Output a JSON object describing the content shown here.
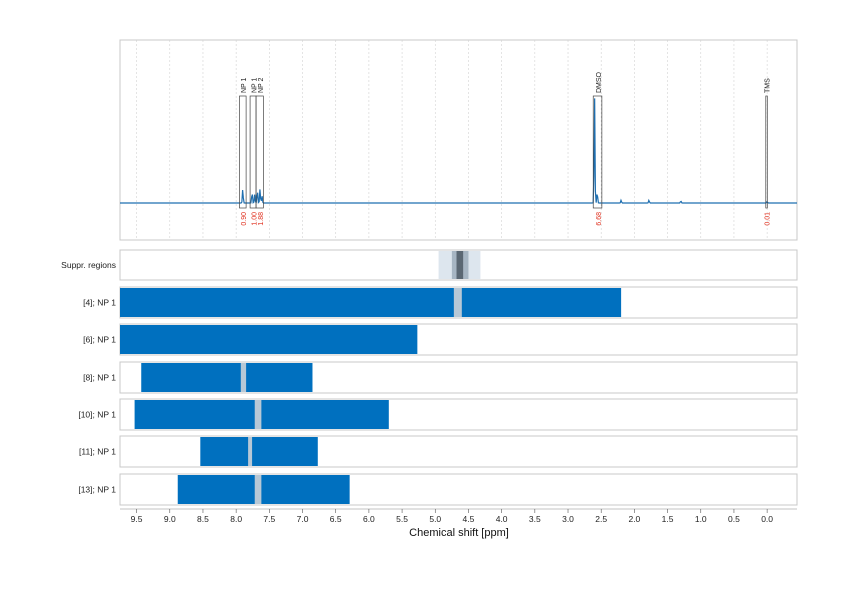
{
  "chart_data": {
    "type": "nmr_spectrum_with_regions",
    "xlabel": "Chemical shift [ppm]",
    "x_axis_reversed": true,
    "xlim": [
      9.75,
      -0.45
    ],
    "x_ticks": [
      "9.5",
      "9.0",
      "8.5",
      "8.0",
      "7.5",
      "7.0",
      "6.5",
      "6.0",
      "5.5",
      "5.0",
      "4.5",
      "4.0",
      "3.5",
      "3.0",
      "2.5",
      "2.0",
      "1.5",
      "1.0",
      "0.5",
      "0.0"
    ],
    "spectrum": {
      "baseline": 0,
      "ylim": [
        -0.22,
        1.0
      ],
      "color": "#1f6fb0",
      "peaks": [
        {
          "x": 7.9,
          "h": 0.1
        },
        {
          "x": 7.76,
          "h": 0.08
        },
        {
          "x": 7.72,
          "h": 0.06
        },
        {
          "x": 7.68,
          "h": 0.09
        },
        {
          "x": 7.64,
          "h": 0.1
        },
        {
          "x": 7.61,
          "h": 0.05
        },
        {
          "x": 2.6,
          "h": 0.75
        },
        {
          "x": 2.56,
          "h": 0.08
        },
        {
          "x": 2.2,
          "h": 0.02
        },
        {
          "x": 1.78,
          "h": 0.02
        },
        {
          "x": 1.3,
          "h": 0.015
        },
        {
          "x": 0.0,
          "h": 0.01
        }
      ],
      "annotations": [
        {
          "label": "NP 1",
          "x": 7.9,
          "x_from": 7.95,
          "x_to": 7.85,
          "integral": "0.90"
        },
        {
          "label": "NP 1",
          "x": 7.74,
          "x_from": 7.79,
          "x_to": 7.7,
          "integral": "1.00"
        },
        {
          "label": "NP 2",
          "x": 7.64,
          "x_from": 7.7,
          "x_to": 7.59,
          "integral": "1.88"
        },
        {
          "label": "DMSO",
          "x": 2.55,
          "x_from": 2.62,
          "x_to": 2.49,
          "integral": "6.68"
        },
        {
          "label": "TMS",
          "x": 0.01,
          "x_from": 0.02,
          "x_to": 0.0,
          "integral": "0.01"
        }
      ],
      "integral_color": "#e0301e"
    },
    "suppression": {
      "label": "Suppr. regions",
      "outer": [
        4.95,
        4.32
      ],
      "middle": [
        4.75,
        4.5
      ],
      "inner": [
        4.68,
        4.58
      ]
    },
    "bar_rows": [
      {
        "label": "[4]; NP 1",
        "start": 9.75,
        "end": 2.2,
        "gap": [
          4.72,
          4.6
        ]
      },
      {
        "label": "[6]; NP 1",
        "start": 9.75,
        "end": 5.27,
        "gap": null
      },
      {
        "label": "[8]; NP 1",
        "start": 9.43,
        "end": 6.85,
        "gap": [
          7.93,
          7.85
        ]
      },
      {
        "label": "[10]; NP 1",
        "start": 9.53,
        "end": 5.7,
        "gap": [
          7.72,
          7.62
        ]
      },
      {
        "label": "[11]; NP 1",
        "start": 8.54,
        "end": 6.77,
        "gap": [
          7.82,
          7.76
        ]
      },
      {
        "label": "[13]; NP 1",
        "start": 8.88,
        "end": 6.29,
        "gap": [
          7.72,
          7.62
        ]
      }
    ],
    "colors": {
      "bar": "#0070bf",
      "gap": "#b7c8d6",
      "suppr_outer": "#dde6ee",
      "suppr_middle": "#a7b6c3",
      "suppr_inner": "#5b6873"
    }
  }
}
